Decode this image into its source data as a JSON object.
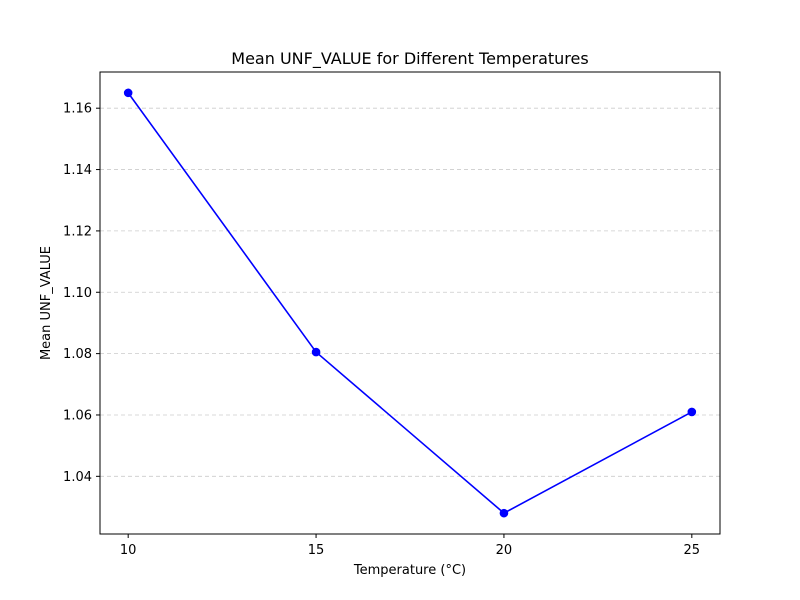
{
  "chart_data": {
    "type": "line",
    "title": "Mean UNF_VALUE for Different Temperatures",
    "xlabel": "Temperature (°C)",
    "ylabel": "Mean UNF_VALUE",
    "x": [
      10,
      15,
      20,
      25
    ],
    "series": [
      {
        "values": [
          1.165,
          1.0805,
          1.028,
          1.061
        ],
        "color": "#0000ff",
        "marker": "circle"
      }
    ],
    "xticks": [
      10,
      15,
      20,
      25
    ],
    "xtick_labels": [
      "10",
      "15",
      "20",
      "25"
    ],
    "yticks": [
      1.04,
      1.06,
      1.08,
      1.1,
      1.12,
      1.14,
      1.16
    ],
    "ytick_labels": [
      "1.04",
      "1.06",
      "1.08",
      "1.10",
      "1.12",
      "1.14",
      "1.16"
    ],
    "xlim": [
      9.25,
      25.75
    ],
    "ylim": [
      1.0212,
      1.1718
    ],
    "grid": "y-dashed"
  }
}
